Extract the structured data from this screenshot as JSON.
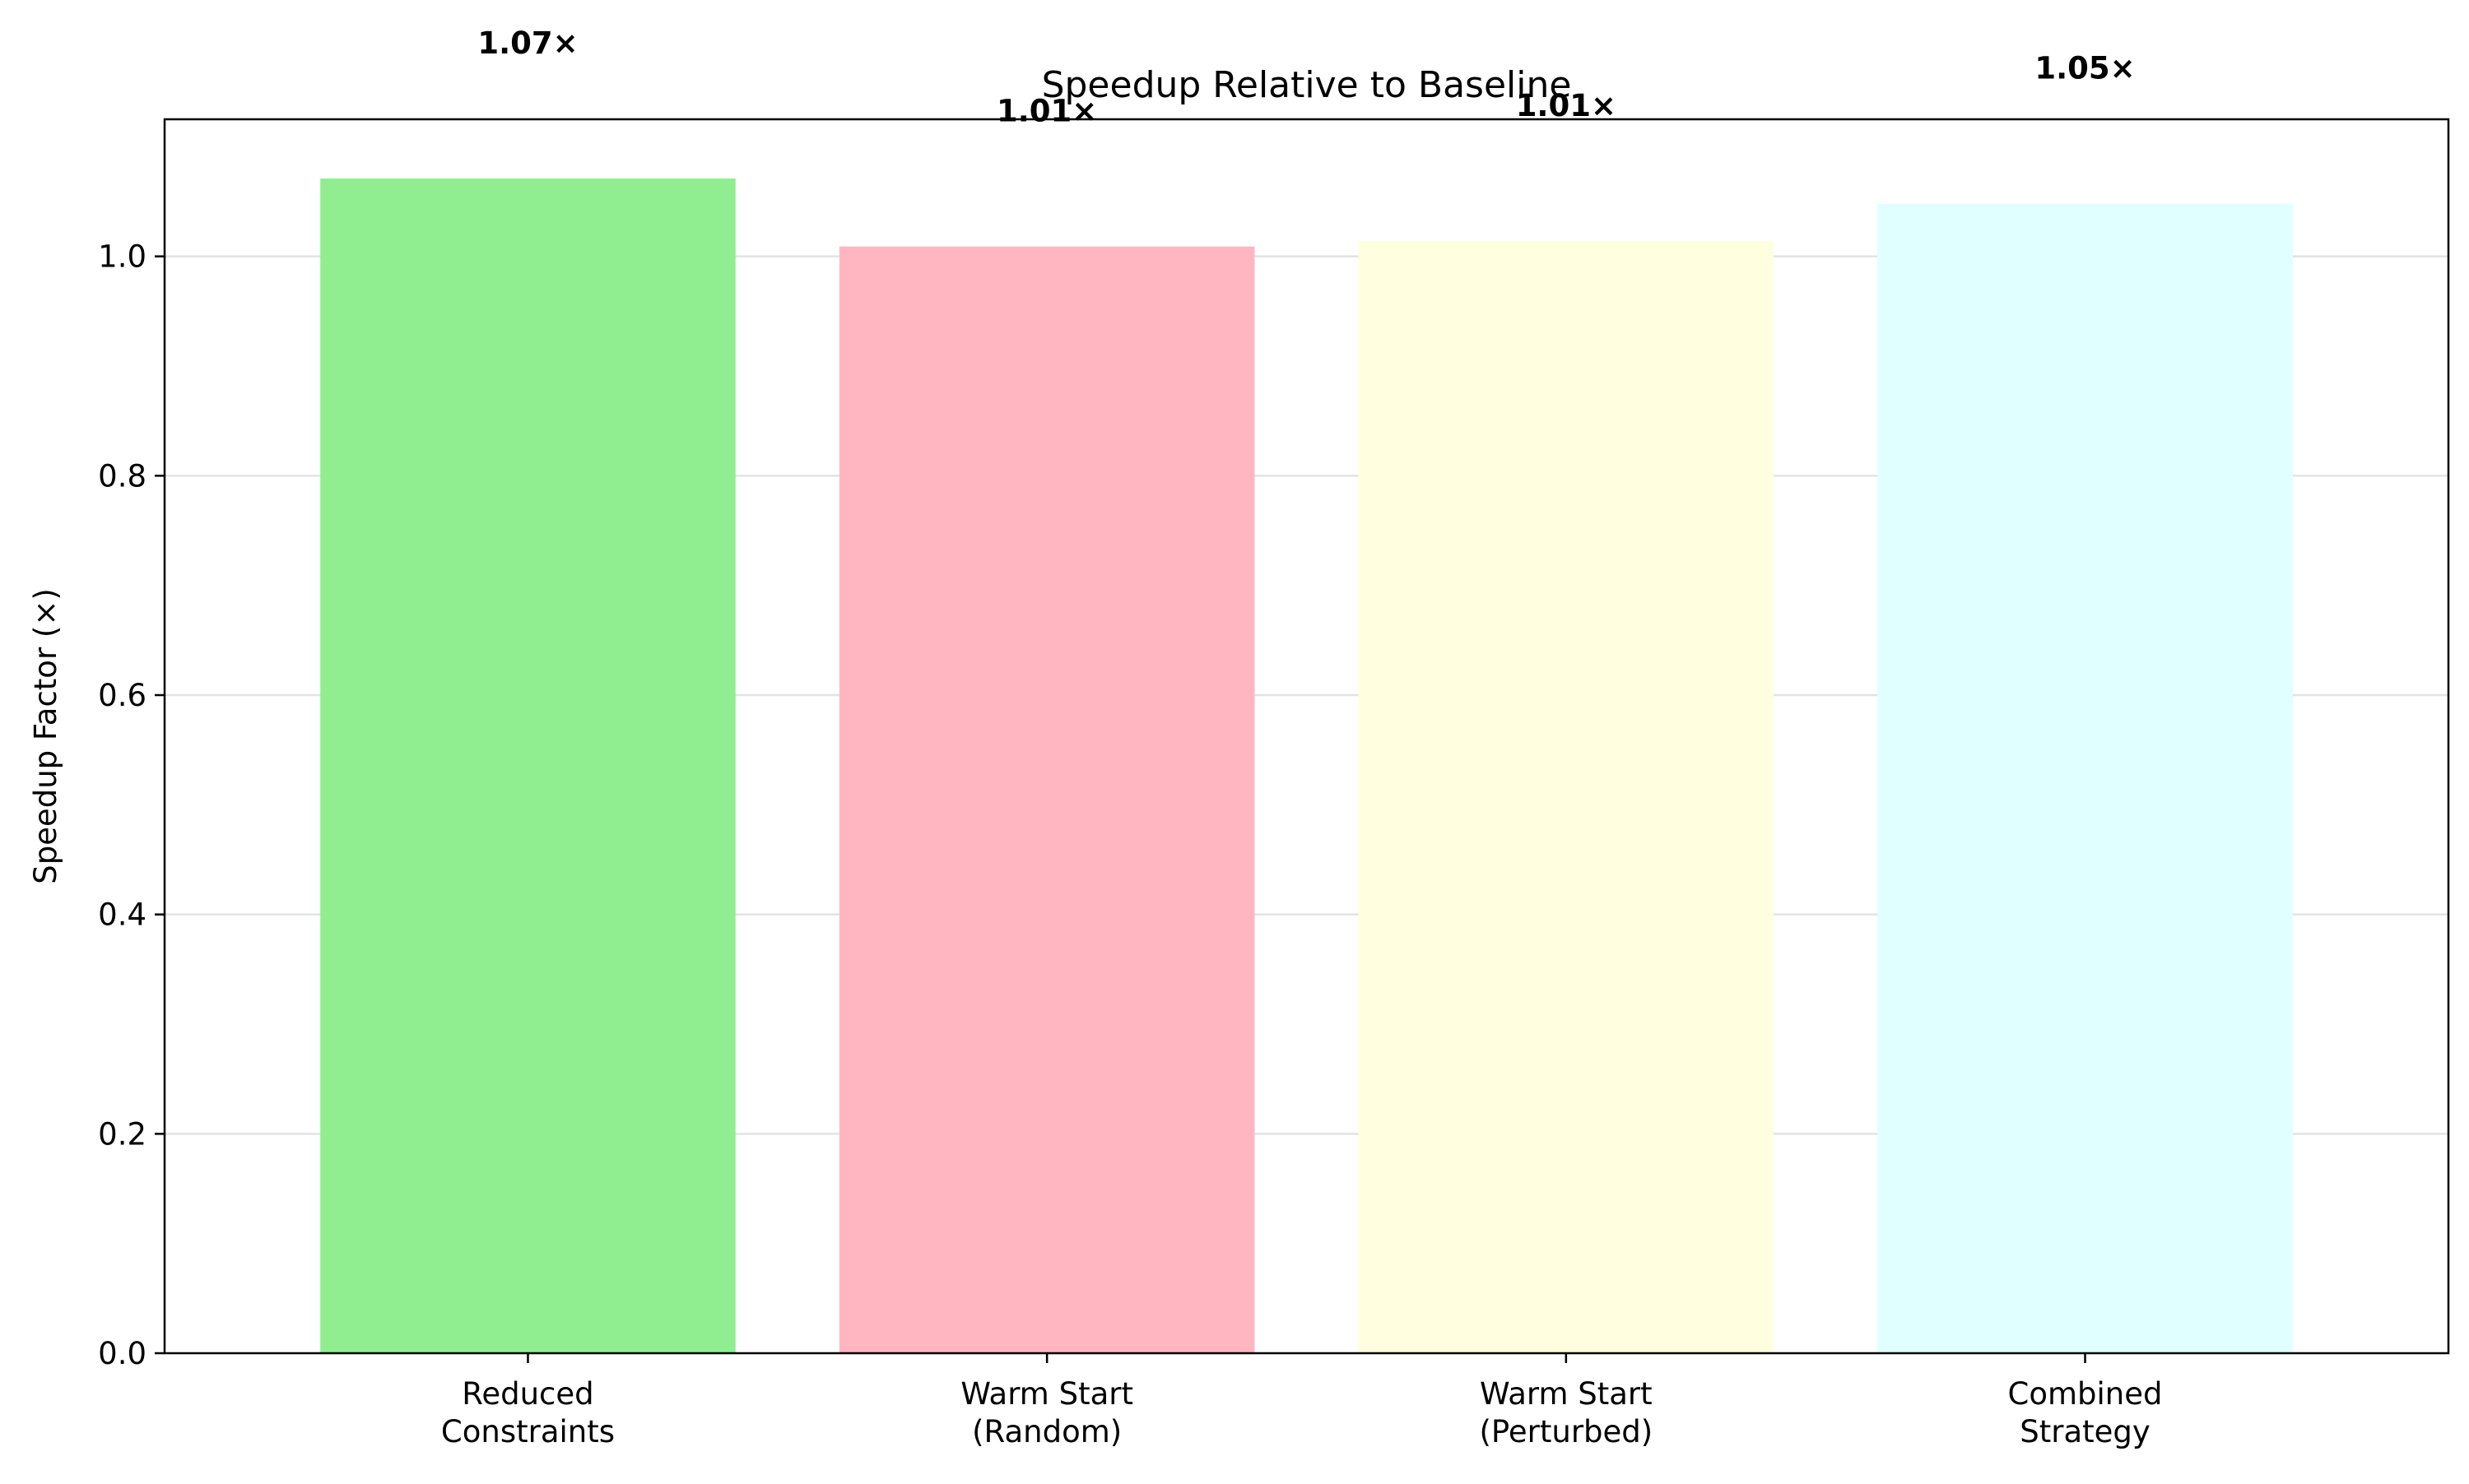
{
  "chart_data": {
    "type": "bar",
    "title": "Speedup Relative to Baseline",
    "xlabel": "",
    "ylabel": "Speedup Factor (×)",
    "categories": [
      [
        "Reduced",
        "Constraints"
      ],
      [
        "Warm Start",
        "(Random)"
      ],
      [
        "Warm Start",
        "(Perturbed)"
      ],
      [
        "Combined",
        "Strategy"
      ]
    ],
    "values": [
      1.071,
      1.009,
      1.014,
      1.048
    ],
    "data_labels": [
      "1.07×",
      "1.01×",
      "1.01×",
      "1.05×"
    ],
    "colors": [
      "#90ee90",
      "#ffb6c1",
      "#ffffe0",
      "#e0ffff"
    ],
    "ylim": [
      0,
      1.125
    ],
    "yticks": [
      0.0,
      0.2,
      0.4,
      0.6,
      0.8,
      1.0
    ],
    "ytick_labels": [
      "0.0",
      "0.2",
      "0.4",
      "0.6",
      "0.8",
      "1.0"
    ],
    "grid": "y",
    "legend": "none"
  }
}
